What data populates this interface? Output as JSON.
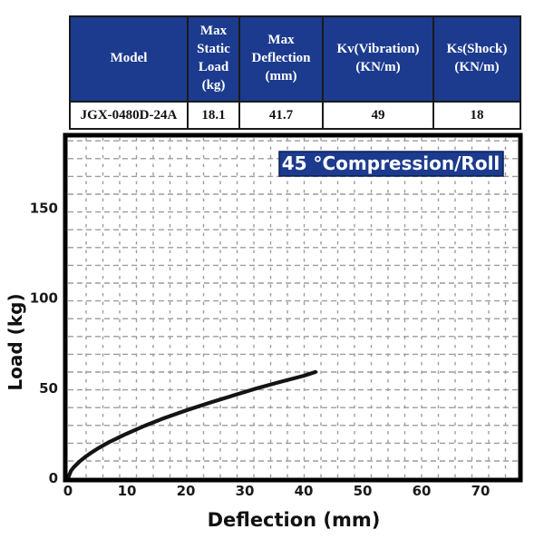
{
  "table": {
    "columns": [
      {
        "label": "Model"
      },
      {
        "label": "Max Static Load (kg)"
      },
      {
        "label": "Max Deflection (mm)"
      },
      {
        "label": "Kv(Vibration) (KN/m)"
      },
      {
        "label": "Ks(Shock) (KN/m)"
      }
    ],
    "rows": [
      {
        "model": "JGX-0480D-24A",
        "max_static_load_kg": "18.1",
        "max_deflection_mm": "41.7",
        "kv_vibration": "49",
        "ks_shock": "18"
      }
    ]
  },
  "chart_data": {
    "type": "line",
    "title": "45 °Compression/Roll",
    "xlabel": "Deflection (mm)",
    "ylabel": "Load (kg)",
    "xlim": [
      0,
      76.5
    ],
    "ylim": [
      0,
      190
    ],
    "x_ticks": [
      0,
      10,
      20,
      30,
      40,
      50,
      60,
      70
    ],
    "y_ticks": [
      0,
      50,
      100,
      150
    ],
    "grid": "fine dashed gray grid (not aligned to ticks)",
    "legend_position": "none",
    "series": [
      {
        "name": "load_vs_deflection",
        "x": [
          0,
          0.5,
          1,
          2,
          3,
          4,
          5,
          7,
          10,
          13,
          16,
          20,
          24,
          28,
          32,
          36,
          40,
          42
        ],
        "y": [
          0,
          4.1,
          6.2,
          9.4,
          12.0,
          14.3,
          16.4,
          20.1,
          24.8,
          29.1,
          33.0,
          37.6,
          41.9,
          45.9,
          49.9,
          53.5,
          56.9,
          59.0
        ]
      }
    ],
    "colors": {
      "header_bg": "#1c3b8e",
      "title_badge_bg": "#1c3b8e",
      "title_text": "#ffffff",
      "curve": "#141414",
      "grid": "#9c9c9c",
      "frame": "#000000"
    }
  }
}
